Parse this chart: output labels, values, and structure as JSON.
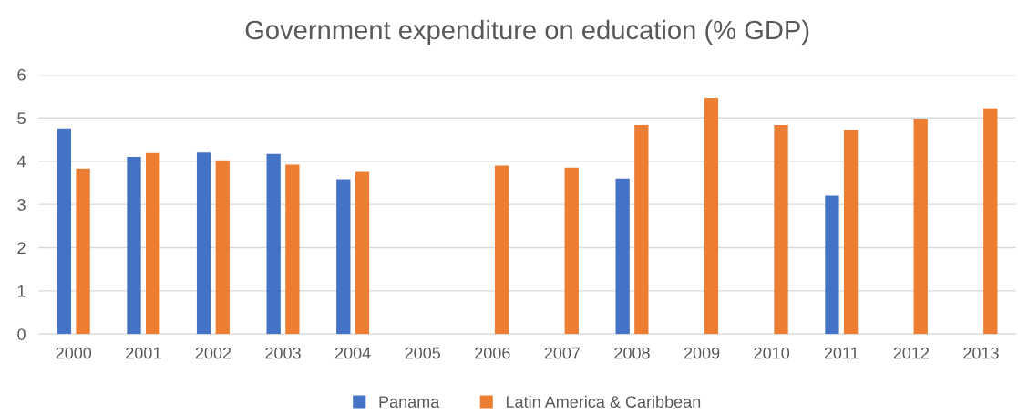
{
  "chart_data": {
    "type": "bar",
    "title": "Government expenditure on education (% GDP)",
    "categories": [
      "2000",
      "2001",
      "2002",
      "2003",
      "2004",
      "2005",
      "2006",
      "2007",
      "2008",
      "2009",
      "2010",
      "2011",
      "2012",
      "2013"
    ],
    "series": [
      {
        "name": "Panama",
        "color": "#4472c4",
        "values": [
          4.76,
          4.1,
          4.2,
          4.17,
          3.58,
          null,
          null,
          null,
          3.6,
          null,
          null,
          3.2,
          null,
          null
        ]
      },
      {
        "name": "Latin America & Caribbean",
        "color": "#ed7d31",
        "values": [
          3.83,
          4.19,
          4.02,
          3.92,
          3.75,
          null,
          3.9,
          3.85,
          4.84,
          5.47,
          4.84,
          4.72,
          4.97,
          5.22
        ]
      }
    ],
    "ylim": [
      0,
      6
    ],
    "yticks": [
      0,
      1,
      2,
      3,
      4,
      5,
      6
    ],
    "grid": "y",
    "legend": "bottom"
  }
}
